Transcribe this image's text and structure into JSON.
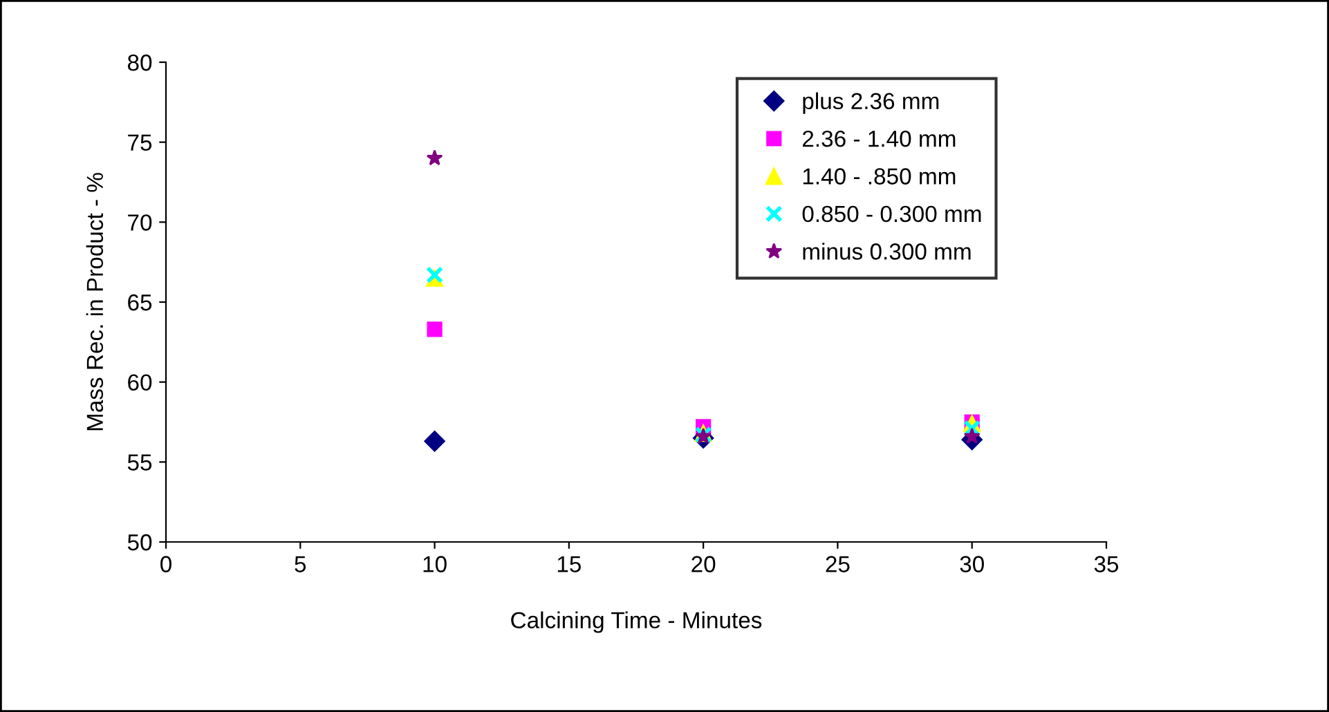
{
  "chart_data": {
    "type": "scatter",
    "xlabel": "Calcining Time - Minutes",
    "ylabel": "Mass Rec. in Product - %",
    "x": [
      10,
      20,
      30
    ],
    "series": [
      {
        "name": "plus 2.36 mm",
        "color": "#000080",
        "marker": "diamond",
        "values": [
          56.3,
          56.5,
          56.4
        ]
      },
      {
        "name": "2.36 - 1.40 mm",
        "color": "#ff00ff",
        "marker": "square",
        "values": [
          63.3,
          57.2,
          57.5
        ]
      },
      {
        "name": "1.40 - .850 mm",
        "color": "#ffff00",
        "marker": "triangle",
        "values": [
          66.5,
          56.8,
          57.4
        ]
      },
      {
        "name": "0.850 - 0.300 mm",
        "color": "#00ffff",
        "marker": "cross",
        "values": [
          66.7,
          56.7,
          57.1
        ]
      },
      {
        "name": "minus 0.300 mm",
        "color": "#800080",
        "marker": "star",
        "values": [
          74.0,
          56.6,
          56.6
        ]
      }
    ],
    "xlim": [
      0,
      35
    ],
    "xticks": [
      0,
      5,
      10,
      15,
      20,
      25,
      30,
      35
    ],
    "ylim": [
      50,
      80
    ],
    "yticks": [
      50,
      55,
      60,
      65,
      70,
      75,
      80
    ],
    "grid": false,
    "legend": "top right"
  }
}
